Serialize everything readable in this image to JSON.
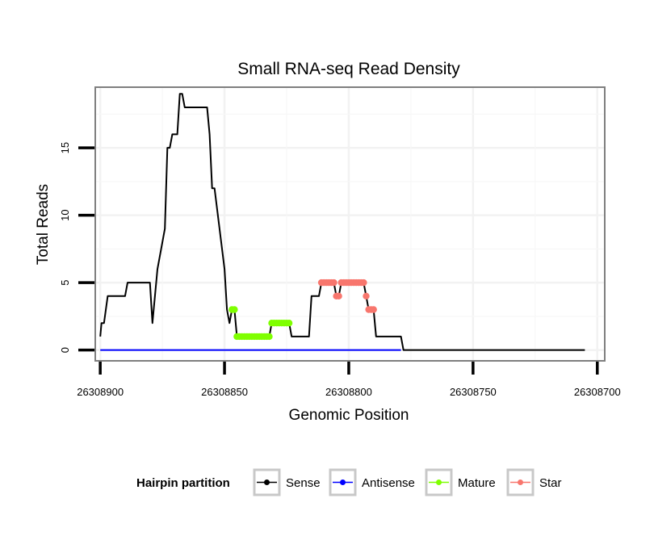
{
  "chart_data": {
    "type": "line",
    "title": "Small RNA-seq Read Density",
    "xlabel": "Genomic Position",
    "ylabel": "Total Reads",
    "xlim": [
      26308902,
      26308697
    ],
    "ylim": [
      -0.8,
      19.5
    ],
    "x_reversed": true,
    "x_ticks": [
      26308900,
      26308850,
      26308800,
      26308750,
      26308700
    ],
    "x_tick_labels": [
      "26308900",
      "26308850",
      "26308800",
      "26308750",
      "26308700"
    ],
    "y_ticks": [
      0,
      5,
      10,
      15
    ],
    "y_tick_labels": [
      "0",
      "5",
      "10",
      "15"
    ],
    "legend": {
      "title": "Hairpin partition",
      "position": "bottom",
      "entries": [
        "Sense",
        "Antisense",
        "Mature",
        "Star"
      ]
    },
    "colors": {
      "Sense": "#000000",
      "Antisense": "#0000ff",
      "Mature": "#7fff00",
      "Star": "#f8766d"
    },
    "series": [
      {
        "name": "Sense",
        "style": "line",
        "points": [
          [
            26308900,
            1
          ],
          [
            26308899.5,
            2
          ],
          [
            26308898.5,
            2
          ],
          [
            26308897,
            4
          ],
          [
            26308890,
            4
          ],
          [
            26308889,
            5
          ],
          [
            26308880,
            5
          ],
          [
            26308879,
            2
          ],
          [
            26308877,
            6
          ],
          [
            26308874,
            9
          ],
          [
            26308873,
            15
          ],
          [
            26308872,
            15
          ],
          [
            26308871,
            16
          ],
          [
            26308869,
            16
          ],
          [
            26308868,
            19
          ],
          [
            26308867,
            19
          ],
          [
            26308866,
            18
          ],
          [
            26308857,
            18
          ],
          [
            26308856,
            16
          ],
          [
            26308855,
            12
          ],
          [
            26308854,
            12
          ],
          [
            26308850,
            6
          ],
          [
            26308849,
            3
          ],
          [
            26308848,
            2
          ],
          [
            26308847,
            3
          ],
          [
            26308846,
            3
          ],
          [
            26308845,
            1
          ],
          [
            26308832,
            1
          ],
          [
            26308831,
            2
          ],
          [
            26308824,
            2
          ],
          [
            26308823,
            1
          ],
          [
            26308816,
            1
          ],
          [
            26308815,
            4
          ],
          [
            26308812,
            4
          ],
          [
            26308811,
            5
          ],
          [
            26308806,
            5
          ],
          [
            26308805,
            4
          ],
          [
            26308804,
            4
          ],
          [
            26308803,
            5
          ],
          [
            26308794,
            5
          ],
          [
            26308793,
            4
          ],
          [
            26308792,
            3
          ],
          [
            26308790,
            3
          ],
          [
            26308789,
            1
          ],
          [
            26308779,
            1
          ],
          [
            26308778,
            0
          ],
          [
            26308705,
            0
          ]
        ]
      },
      {
        "name": "Antisense",
        "style": "line",
        "points": [
          [
            26308900,
            0
          ],
          [
            26308779,
            0
          ]
        ]
      },
      {
        "name": "Mature",
        "style": "points",
        "points": [
          [
            26308847,
            3
          ],
          [
            26308846,
            3
          ],
          [
            26308845,
            1
          ],
          [
            26308844,
            1
          ],
          [
            26308843,
            1
          ],
          [
            26308842,
            1
          ],
          [
            26308841,
            1
          ],
          [
            26308840,
            1
          ],
          [
            26308839,
            1
          ],
          [
            26308838,
            1
          ],
          [
            26308837,
            1
          ],
          [
            26308836,
            1
          ],
          [
            26308835,
            1
          ],
          [
            26308834,
            1
          ],
          [
            26308833,
            1
          ],
          [
            26308832,
            1
          ],
          [
            26308831,
            2
          ],
          [
            26308830,
            2
          ],
          [
            26308829,
            2
          ],
          [
            26308828,
            2
          ],
          [
            26308827,
            2
          ],
          [
            26308826,
            2
          ],
          [
            26308825,
            2
          ],
          [
            26308824,
            2
          ]
        ]
      },
      {
        "name": "Star",
        "style": "points",
        "points": [
          [
            26308811,
            5
          ],
          [
            26308810,
            5
          ],
          [
            26308809,
            5
          ],
          [
            26308808,
            5
          ],
          [
            26308807,
            5
          ],
          [
            26308806,
            5
          ],
          [
            26308805,
            4
          ],
          [
            26308804,
            4
          ],
          [
            26308803,
            5
          ],
          [
            26308802,
            5
          ],
          [
            26308801,
            5
          ],
          [
            26308800,
            5
          ],
          [
            26308799,
            5
          ],
          [
            26308798,
            5
          ],
          [
            26308797,
            5
          ],
          [
            26308796,
            5
          ],
          [
            26308795,
            5
          ],
          [
            26308794,
            5
          ],
          [
            26308793,
            4
          ],
          [
            26308792,
            3
          ],
          [
            26308791,
            3
          ],
          [
            26308790,
            3
          ]
        ]
      }
    ]
  }
}
